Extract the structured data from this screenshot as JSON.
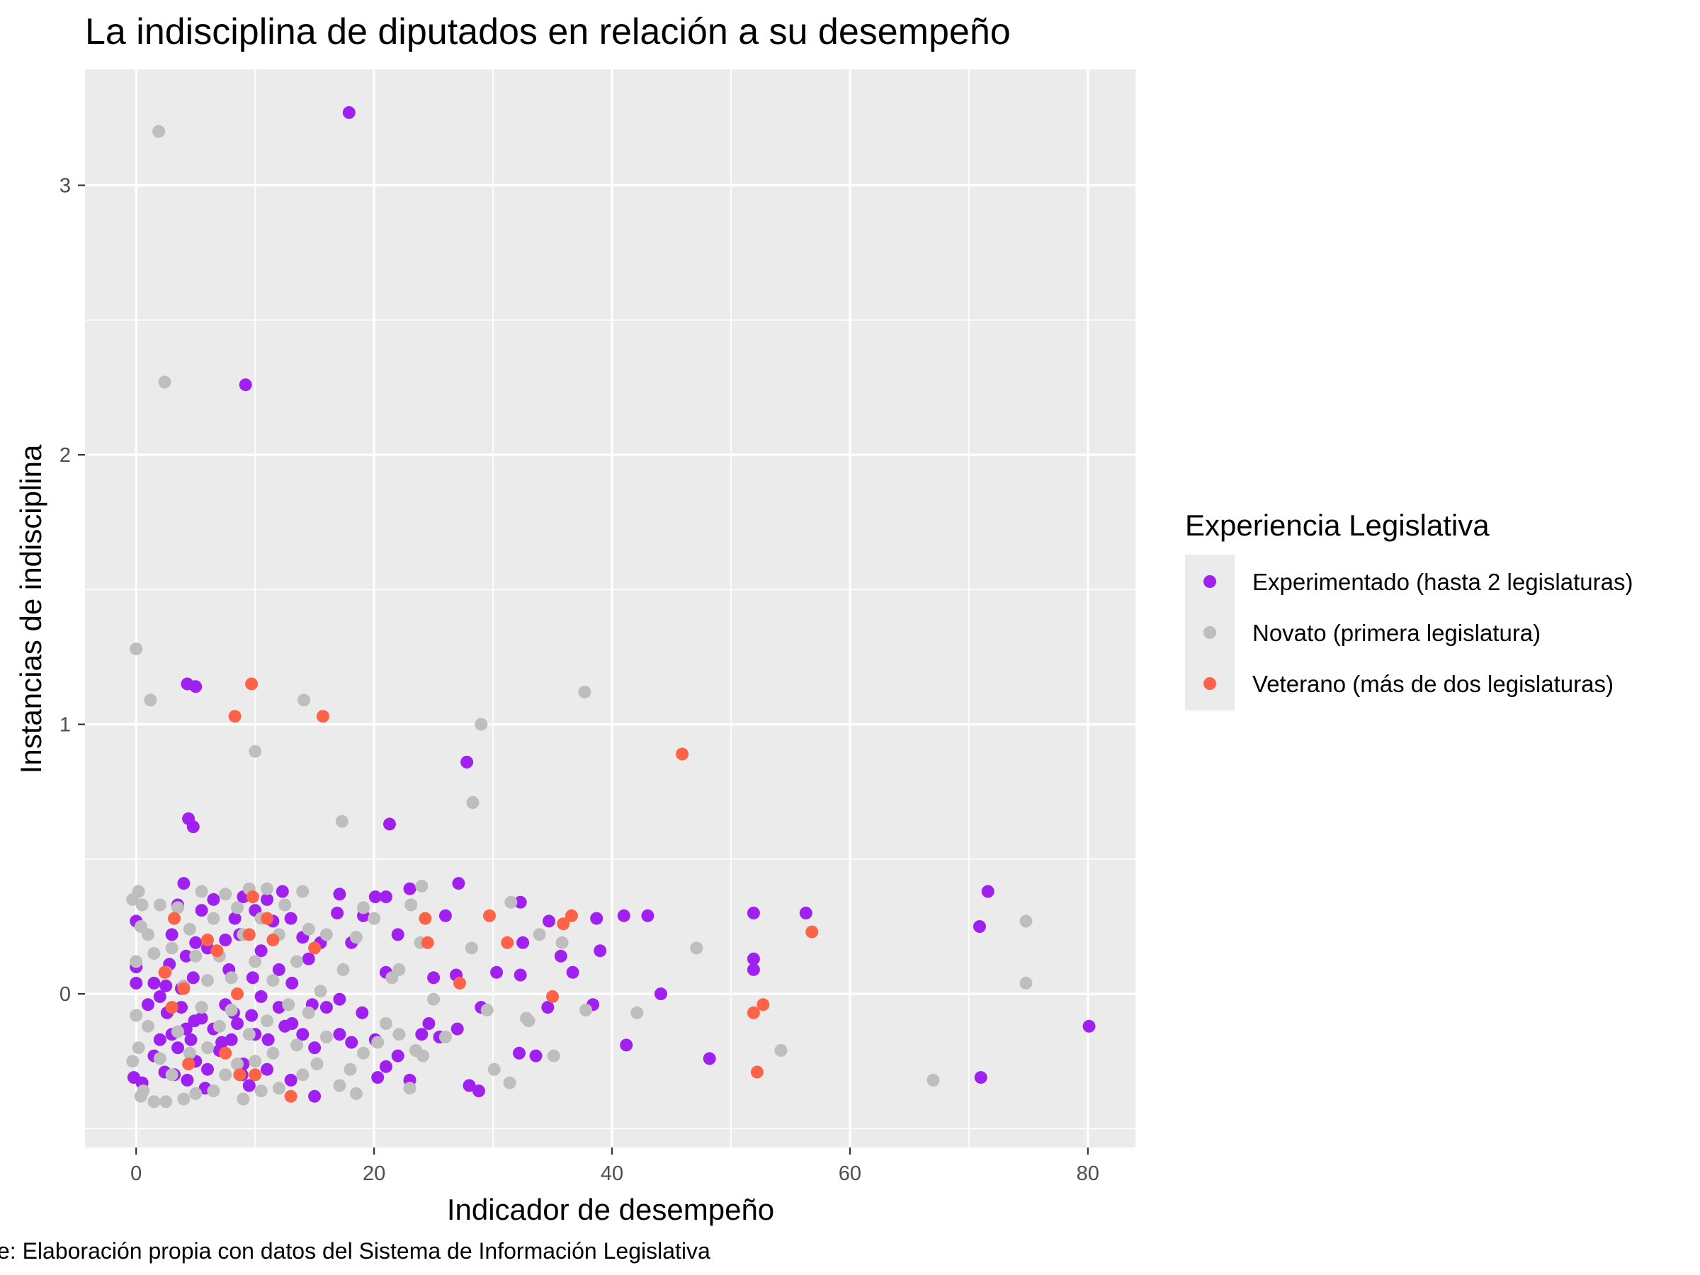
{
  "chart_data": {
    "type": "scatter",
    "title": "La indisciplina de diputados en relación a su desempeño",
    "xlabel": "Indicador de desempeño",
    "ylabel": "Instancias de indisciplina",
    "caption": "e: Elaboración propia con datos del Sistema de Información Legislativa",
    "xlim": [
      -4.3,
      84
    ],
    "ylim": [
      -0.57,
      3.43
    ],
    "x_ticks": [
      0,
      20,
      40,
      60,
      80
    ],
    "x_tick_labels": [
      "0",
      "20",
      "40",
      "60",
      "80"
    ],
    "y_ticks": [
      0,
      1,
      2,
      3
    ],
    "y_tick_labels": [
      "0",
      "1",
      "2",
      "3"
    ],
    "grid": true,
    "panel_background": "#ebebeb",
    "grid_color": "#ffffff",
    "legend": {
      "title": "Experiencia Legislativa",
      "placement": "right",
      "background": "#ebebeb"
    },
    "series": [
      {
        "name": "Experimentado (hasta 2 legislaturas)",
        "color": "#a020f0",
        "points": [
          [
            17.9,
            3.27
          ],
          [
            9.2,
            2.26
          ],
          [
            4.3,
            1.15
          ],
          [
            5,
            1.14
          ],
          [
            27.8,
            0.86
          ],
          [
            4.4,
            0.65
          ],
          [
            4.8,
            0.62
          ],
          [
            21.3,
            0.63
          ],
          [
            71.6,
            0.38
          ],
          [
            70.9,
            0.25
          ],
          [
            56.3,
            0.3
          ],
          [
            51.9,
            0.3
          ],
          [
            51.9,
            0.13
          ],
          [
            51.9,
            0.09
          ],
          [
            43,
            0.29
          ],
          [
            41,
            0.29
          ],
          [
            38.7,
            0.28
          ],
          [
            39,
            0.16
          ],
          [
            36.7,
            0.08
          ],
          [
            35.7,
            0.14
          ],
          [
            32.3,
            0.34
          ],
          [
            34.7,
            0.27
          ],
          [
            32.5,
            0.19
          ],
          [
            32.3,
            0.07
          ],
          [
            30.3,
            0.08
          ],
          [
            27.1,
            0.41
          ],
          [
            26,
            0.29
          ],
          [
            26.9,
            0.07
          ],
          [
            25,
            0.06
          ],
          [
            23,
            0.39
          ],
          [
            22,
            0.22
          ],
          [
            21,
            0.36
          ],
          [
            20.1,
            0.36
          ],
          [
            21,
            0.08
          ],
          [
            19.1,
            0.29
          ],
          [
            18.1,
            0.19
          ],
          [
            17.1,
            0.37
          ],
          [
            16.9,
            0.3
          ],
          [
            15.5,
            0.19
          ],
          [
            14.5,
            0.13
          ],
          [
            13,
            0.28
          ],
          [
            14,
            0.21
          ],
          [
            12.3,
            0.38
          ],
          [
            12,
            0.09
          ],
          [
            13.1,
            0.04
          ],
          [
            11,
            0.35
          ],
          [
            11.5,
            0.27
          ],
          [
            10,
            0.31
          ],
          [
            10.5,
            0.16
          ],
          [
            9.8,
            0.06
          ],
          [
            9,
            0.36
          ],
          [
            8.7,
            0.22
          ],
          [
            8.3,
            0.28
          ],
          [
            7.5,
            0.2
          ],
          [
            7.8,
            0.09
          ],
          [
            6.5,
            0.35
          ],
          [
            6,
            0.17
          ],
          [
            5.5,
            0.31
          ],
          [
            5,
            0.19
          ],
          [
            4.8,
            0.06
          ],
          [
            4,
            0.41
          ],
          [
            4.2,
            0.14
          ],
          [
            3.5,
            0.33
          ],
          [
            3,
            0.22
          ],
          [
            2.8,
            0.11
          ],
          [
            2.5,
            0.03
          ],
          [
            3.8,
            0.02
          ],
          [
            2,
            -0.01
          ],
          [
            1.5,
            0.04
          ],
          [
            0,
            0.27
          ],
          [
            0,
            0.1
          ],
          [
            0,
            0.04
          ],
          [
            44.1,
            0
          ],
          [
            38.4,
            -0.04
          ],
          [
            34.6,
            -0.05
          ],
          [
            29,
            -0.05
          ],
          [
            80.1,
            -0.12
          ],
          [
            41.2,
            -0.19
          ],
          [
            48.2,
            -0.24
          ],
          [
            33.6,
            -0.23
          ],
          [
            32.2,
            -0.22
          ],
          [
            71,
            -0.31
          ],
          [
            28,
            -0.34
          ],
          [
            28.8,
            -0.36
          ],
          [
            27,
            -0.13
          ],
          [
            25.5,
            -0.16
          ],
          [
            24.6,
            -0.11
          ],
          [
            24,
            -0.15
          ],
          [
            23,
            -0.32
          ],
          [
            22,
            -0.23
          ],
          [
            21,
            -0.27
          ],
          [
            20.1,
            -0.17
          ],
          [
            20.3,
            -0.31
          ],
          [
            19,
            -0.07
          ],
          [
            18.1,
            -0.18
          ],
          [
            17.1,
            -0.15
          ],
          [
            17.1,
            -0.02
          ],
          [
            16,
            -0.05
          ],
          [
            15,
            -0.2
          ],
          [
            14.8,
            -0.04
          ],
          [
            15,
            -0.38
          ],
          [
            14,
            -0.15
          ],
          [
            13.1,
            -0.11
          ],
          [
            13,
            -0.32
          ],
          [
            12.5,
            -0.12
          ],
          [
            12,
            -0.05
          ],
          [
            11.1,
            -0.17
          ],
          [
            11,
            -0.28
          ],
          [
            10.5,
            -0.01
          ],
          [
            10,
            -0.15
          ],
          [
            9.7,
            -0.08
          ],
          [
            9.5,
            -0.34
          ],
          [
            9,
            -0.26
          ],
          [
            8.5,
            -0.11
          ],
          [
            8.9,
            -0.3
          ],
          [
            8,
            -0.17
          ],
          [
            7.5,
            -0.04
          ],
          [
            7,
            -0.21
          ],
          [
            6.5,
            -0.13
          ],
          [
            6,
            -0.28
          ],
          [
            5.5,
            -0.09
          ],
          [
            5,
            -0.25
          ],
          [
            4.6,
            -0.17
          ],
          [
            4.2,
            -0.13
          ],
          [
            4.3,
            -0.32
          ],
          [
            3.8,
            -0.05
          ],
          [
            3.5,
            -0.2
          ],
          [
            3,
            -0.15
          ],
          [
            2.6,
            -0.07
          ],
          [
            2.4,
            -0.29
          ],
          [
            2,
            -0.17
          ],
          [
            1.5,
            -0.23
          ],
          [
            1,
            -0.04
          ],
          [
            0.5,
            -0.33
          ],
          [
            -0.2,
            -0.31
          ],
          [
            5.8,
            -0.35
          ],
          [
            7.2,
            -0.18
          ],
          [
            4.9,
            -0.1
          ],
          [
            3.2,
            -0.3
          ],
          [
            8.2,
            -0.07
          ]
        ]
      },
      {
        "name": "Novato (primera legislatura)",
        "color": "#bebebe",
        "points": [
          [
            1.9,
            3.2
          ],
          [
            2.4,
            2.27
          ],
          [
            0,
            1.28
          ],
          [
            1.2,
            1.09
          ],
          [
            14.1,
            1.09
          ],
          [
            37.7,
            1.12
          ],
          [
            29,
            1
          ],
          [
            10,
            0.9
          ],
          [
            28.3,
            0.71
          ],
          [
            17.3,
            0.64
          ],
          [
            74.8,
            0.27
          ],
          [
            74.8,
            0.04
          ],
          [
            47.1,
            0.17
          ],
          [
            33.9,
            0.22
          ],
          [
            35.8,
            0.19
          ],
          [
            31.5,
            0.34
          ],
          [
            28.2,
            0.17
          ],
          [
            24,
            0.4
          ],
          [
            23.9,
            0.19
          ],
          [
            23.1,
            0.33
          ],
          [
            22.1,
            0.09
          ],
          [
            21.5,
            0.06
          ],
          [
            20,
            0.28
          ],
          [
            19.1,
            0.32
          ],
          [
            18.5,
            0.21
          ],
          [
            17.4,
            0.09
          ],
          [
            16,
            0.22
          ],
          [
            15.5,
            0.01
          ],
          [
            14.5,
            0.24
          ],
          [
            14,
            0.38
          ],
          [
            13.5,
            0.12
          ],
          [
            12.5,
            0.33
          ],
          [
            12,
            0.22
          ],
          [
            11.5,
            0.05
          ],
          [
            11,
            0.39
          ],
          [
            10.5,
            0.28
          ],
          [
            10,
            0.12
          ],
          [
            9.5,
            0.39
          ],
          [
            9,
            0.22
          ],
          [
            8.5,
            0.32
          ],
          [
            8,
            0.06
          ],
          [
            7.5,
            0.37
          ],
          [
            7,
            0.14
          ],
          [
            6.5,
            0.28
          ],
          [
            6,
            0.05
          ],
          [
            5.5,
            0.38
          ],
          [
            5,
            0.14
          ],
          [
            4.5,
            0.24
          ],
          [
            4,
            0.03
          ],
          [
            3.5,
            0.32
          ],
          [
            3,
            0.17
          ],
          [
            2.5,
            0.08
          ],
          [
            2,
            0.33
          ],
          [
            1.5,
            0.15
          ],
          [
            1,
            0.22
          ],
          [
            0.5,
            0.33
          ],
          [
            0.2,
            0.38
          ],
          [
            0,
            0.12
          ],
          [
            0.4,
            0.25
          ],
          [
            -0.3,
            0.35
          ],
          [
            54.2,
            -0.21
          ],
          [
            67,
            -0.32
          ],
          [
            42.1,
            -0.07
          ],
          [
            37.8,
            -0.06
          ],
          [
            35.1,
            -0.23
          ],
          [
            32.8,
            -0.09
          ],
          [
            31.4,
            -0.33
          ],
          [
            30.1,
            -0.28
          ],
          [
            26,
            -0.16
          ],
          [
            25,
            -0.02
          ],
          [
            24.1,
            -0.23
          ],
          [
            23.5,
            -0.21
          ],
          [
            23,
            -0.35
          ],
          [
            22.1,
            -0.15
          ],
          [
            21,
            -0.11
          ],
          [
            20.3,
            -0.18
          ],
          [
            19.1,
            -0.22
          ],
          [
            18.5,
            -0.37
          ],
          [
            18,
            -0.28
          ],
          [
            17.1,
            -0.34
          ],
          [
            16,
            -0.16
          ],
          [
            15.2,
            -0.26
          ],
          [
            14.5,
            -0.07
          ],
          [
            14,
            -0.3
          ],
          [
            13.5,
            -0.19
          ],
          [
            12.8,
            -0.04
          ],
          [
            12,
            -0.35
          ],
          [
            11.5,
            -0.22
          ],
          [
            11,
            -0.1
          ],
          [
            10.5,
            -0.36
          ],
          [
            10,
            -0.25
          ],
          [
            9.5,
            -0.15
          ],
          [
            9,
            -0.39
          ],
          [
            8.5,
            -0.26
          ],
          [
            8,
            -0.06
          ],
          [
            7.5,
            -0.3
          ],
          [
            7,
            -0.12
          ],
          [
            6.5,
            -0.36
          ],
          [
            6,
            -0.2
          ],
          [
            5.5,
            -0.05
          ],
          [
            5,
            -0.37
          ],
          [
            4.5,
            -0.22
          ],
          [
            4,
            -0.39
          ],
          [
            3.5,
            -0.14
          ],
          [
            3,
            -0.3
          ],
          [
            2.5,
            -0.4
          ],
          [
            2,
            -0.24
          ],
          [
            1.5,
            -0.4
          ],
          [
            1,
            -0.12
          ],
          [
            0.6,
            -0.36
          ],
          [
            0.2,
            -0.2
          ],
          [
            0,
            -0.08
          ],
          [
            -0.3,
            -0.25
          ],
          [
            0.4,
            -0.38
          ],
          [
            33,
            -0.1
          ],
          [
            29.5,
            -0.06
          ]
        ]
      },
      {
        "name": "Veterano (más de dos legislaturas)",
        "color": "#ff6347",
        "points": [
          [
            9.7,
            1.15
          ],
          [
            8.3,
            1.03
          ],
          [
            15.7,
            1.03
          ],
          [
            45.9,
            0.89
          ],
          [
            56.8,
            0.23
          ],
          [
            36.6,
            0.29
          ],
          [
            35.9,
            0.26
          ],
          [
            29.7,
            0.29
          ],
          [
            31.2,
            0.19
          ],
          [
            24.3,
            0.28
          ],
          [
            24.5,
            0.19
          ],
          [
            27.2,
            0.04
          ],
          [
            15,
            0.17
          ],
          [
            11.5,
            0.2
          ],
          [
            11,
            0.28
          ],
          [
            9.8,
            0.36
          ],
          [
            9.5,
            0.22
          ],
          [
            6,
            0.2
          ],
          [
            6.8,
            0.16
          ],
          [
            3.2,
            0.28
          ],
          [
            2.4,
            0.08
          ],
          [
            4,
            0.02
          ],
          [
            8.5,
            0
          ],
          [
            52.7,
            -0.04
          ],
          [
            51.9,
            -0.07
          ],
          [
            52.2,
            -0.29
          ],
          [
            35,
            -0.01
          ],
          [
            13,
            -0.38
          ],
          [
            10,
            -0.3
          ],
          [
            8.7,
            -0.3
          ],
          [
            4.4,
            -0.26
          ],
          [
            7.5,
            -0.22
          ],
          [
            3,
            -0.05
          ]
        ]
      }
    ]
  }
}
